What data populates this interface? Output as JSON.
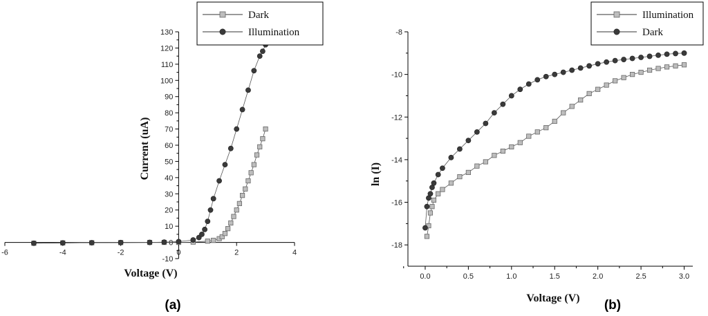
{
  "chart_data": [
    {
      "type": "scatter",
      "panel_label": "(a)",
      "xlabel": "Voltage (V)",
      "ylabel": "Current (uA)",
      "xlim": [
        -6,
        4
      ],
      "ylim": [
        -10,
        130
      ],
      "x_ticks": [
        -6,
        -4,
        -2,
        0,
        2,
        4
      ],
      "y_ticks": [
        -10,
        0,
        10,
        20,
        30,
        40,
        50,
        60,
        70,
        80,
        90,
        100,
        110,
        120,
        130
      ],
      "x_tick_labels": [
        "-6",
        "-4",
        "-2",
        "0",
        "2",
        "4"
      ],
      "y_tick_labels": [
        "-10",
        "0",
        "10",
        "20",
        "30",
        "40",
        "50",
        "60",
        "70",
        "80",
        "90",
        "100",
        "110",
        "120",
        "130"
      ],
      "legend_position": "top-right",
      "series": [
        {
          "name": "Dark",
          "marker": "square",
          "color": "#bdbdbd",
          "x": [
            -5.0,
            -4.0,
            -3.0,
            -2.0,
            -1.0,
            -0.5,
            0.0,
            0.5,
            1.0,
            1.2,
            1.4,
            1.5,
            1.6,
            1.7,
            1.8,
            1.9,
            2.0,
            2.1,
            2.2,
            2.3,
            2.4,
            2.5,
            2.6,
            2.7,
            2.8,
            2.9,
            3.0
          ],
          "y": [
            -0.5,
            -0.3,
            -0.2,
            -0.1,
            0.0,
            0.0,
            0.0,
            0.2,
            0.8,
            1.3,
            2.3,
            3.5,
            5.5,
            8.5,
            12,
            16,
            20,
            24,
            29,
            33,
            38,
            43,
            48,
            54,
            59,
            64,
            70
          ]
        },
        {
          "name": "Illumination",
          "marker": "circle",
          "color": "#3a3a3a",
          "x": [
            -5.0,
            -4.0,
            -3.0,
            -2.0,
            -1.0,
            -0.5,
            0.0,
            0.5,
            0.7,
            0.8,
            0.9,
            1.0,
            1.1,
            1.2,
            1.4,
            1.6,
            1.8,
            2.0,
            2.2,
            2.4,
            2.6,
            2.8,
            2.9,
            3.0
          ],
          "y": [
            -0.5,
            -0.3,
            -0.2,
            -0.1,
            0.0,
            0.2,
            0.5,
            1.5,
            3,
            5,
            8,
            13,
            20,
            27,
            38,
            48,
            58,
            70,
            82,
            94,
            106,
            115,
            118,
            122
          ]
        }
      ]
    },
    {
      "type": "scatter",
      "panel_label": "(b)",
      "xlabel": "Voltage (V)",
      "ylabel": "ln (I)",
      "xlim": [
        -0.2,
        3.1
      ],
      "ylim": [
        -19,
        -8
      ],
      "x_ticks": [
        0.0,
        0.5,
        1.0,
        1.5,
        2.0,
        2.5,
        3.0
      ],
      "y_ticks": [
        -18,
        -16,
        -14,
        -12,
        -10,
        -8
      ],
      "x_tick_labels": [
        "0.0",
        "0.5",
        "1.0",
        "1.5",
        "2.0",
        "2.5",
        "3.0"
      ],
      "y_tick_labels": [
        "-18",
        "-16",
        "-14",
        "-12",
        "-10",
        "-8"
      ],
      "legend_position": "top-right",
      "series": [
        {
          "name": "Illumination",
          "marker": "square",
          "color": "#bdbdbd",
          "x": [
            0.02,
            0.04,
            0.06,
            0.08,
            0.1,
            0.15,
            0.2,
            0.3,
            0.4,
            0.5,
            0.6,
            0.7,
            0.8,
            0.9,
            1.0,
            1.1,
            1.2,
            1.3,
            1.4,
            1.5,
            1.6,
            1.7,
            1.8,
            1.9,
            2.0,
            2.1,
            2.2,
            2.3,
            2.4,
            2.5,
            2.6,
            2.7,
            2.8,
            2.9,
            3.0
          ],
          "y": [
            -17.6,
            -17.1,
            -16.5,
            -16.2,
            -15.9,
            -15.6,
            -15.4,
            -15.1,
            -14.8,
            -14.6,
            -14.3,
            -14.1,
            -13.8,
            -13.6,
            -13.4,
            -13.2,
            -12.9,
            -12.7,
            -12.5,
            -12.2,
            -11.8,
            -11.5,
            -11.2,
            -10.9,
            -10.7,
            -10.5,
            -10.3,
            -10.15,
            -10.0,
            -9.9,
            -9.8,
            -9.72,
            -9.65,
            -9.6,
            -9.55
          ]
        },
        {
          "name": "Dark",
          "marker": "circle",
          "color": "#3a3a3a",
          "x": [
            0.0,
            0.02,
            0.04,
            0.06,
            0.08,
            0.1,
            0.15,
            0.2,
            0.3,
            0.4,
            0.5,
            0.6,
            0.7,
            0.8,
            0.9,
            1.0,
            1.1,
            1.2,
            1.3,
            1.4,
            1.5,
            1.6,
            1.7,
            1.8,
            1.9,
            2.0,
            2.1,
            2.2,
            2.3,
            2.4,
            2.5,
            2.6,
            2.7,
            2.8,
            2.9,
            3.0
          ],
          "y": [
            -17.2,
            -16.2,
            -15.8,
            -15.6,
            -15.3,
            -15.1,
            -14.7,
            -14.4,
            -13.9,
            -13.5,
            -13.1,
            -12.7,
            -12.3,
            -11.8,
            -11.4,
            -11.0,
            -10.7,
            -10.45,
            -10.25,
            -10.1,
            -10.0,
            -9.9,
            -9.8,
            -9.7,
            -9.6,
            -9.5,
            -9.42,
            -9.35,
            -9.3,
            -9.25,
            -9.2,
            -9.15,
            -9.1,
            -9.05,
            -9.02,
            -9.0
          ]
        }
      ]
    }
  ]
}
